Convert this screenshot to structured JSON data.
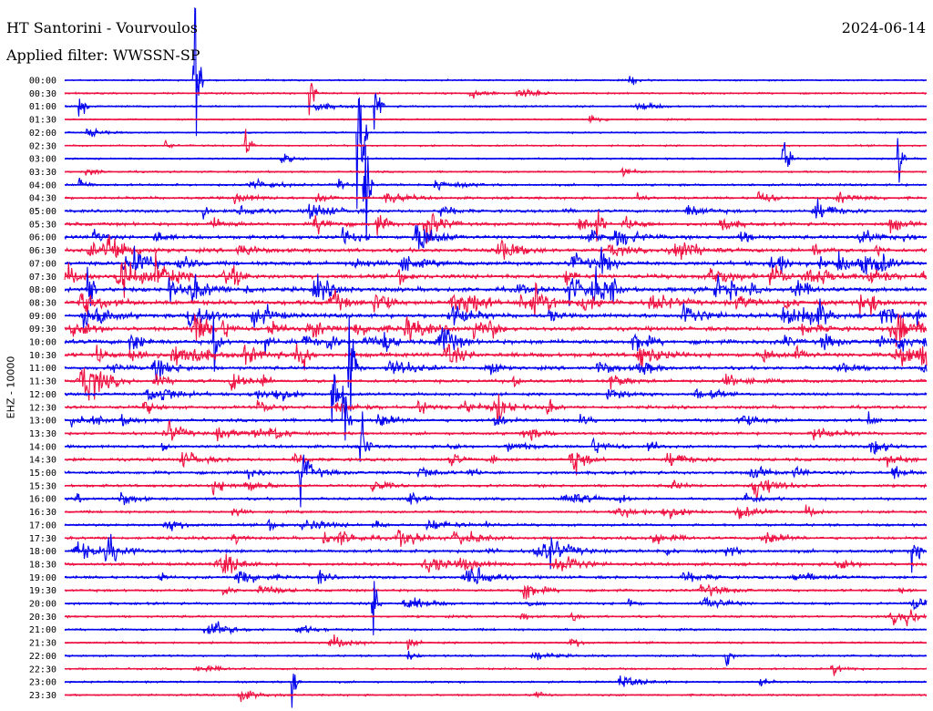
{
  "header": {
    "station": "HT Santorini - Vourvoulos",
    "date": "2024-06-14",
    "filter": "Applied filter: WWSSN-SP"
  },
  "side_label": "EHZ - 10000",
  "chart_data": {
    "type": "line",
    "title": "HT Santorini - Vourvoulos",
    "subtitle": "Applied filter: WWSSN-SP",
    "date": "2024-06-14",
    "ylabel": "EHZ - 10000",
    "row_labels": [
      "00:00",
      "00:30",
      "01:00",
      "01:30",
      "02:00",
      "02:30",
      "03:00",
      "03:30",
      "04:00",
      "04:30",
      "05:00",
      "05:30",
      "06:00",
      "06:30",
      "07:00",
      "07:30",
      "08:00",
      "08:30",
      "09:00",
      "09:30",
      "10:00",
      "10:30",
      "11:00",
      "11:30",
      "12:00",
      "12:30",
      "13:00",
      "13:30",
      "14:00",
      "14:30",
      "15:00",
      "15:30",
      "16:00",
      "16:30",
      "17:00",
      "17:30",
      "18:00",
      "18:30",
      "19:00",
      "19:30",
      "20:00",
      "20:30",
      "21:00",
      "21:30",
      "22:00",
      "22:30",
      "23:00",
      "23:30"
    ],
    "trace_colors": [
      "#0000ee",
      "#ee1040"
    ],
    "xlim_minutes": [
      0,
      30
    ],
    "row_activity": [
      0.04,
      0.1,
      0.12,
      0.05,
      0.05,
      0.08,
      0.1,
      0.12,
      0.25,
      0.35,
      0.45,
      0.55,
      0.65,
      0.7,
      0.8,
      0.85,
      0.9,
      0.95,
      0.85,
      0.8,
      0.9,
      0.85,
      0.6,
      0.55,
      0.45,
      0.5,
      0.5,
      0.45,
      0.45,
      0.5,
      0.5,
      0.4,
      0.35,
      0.3,
      0.35,
      0.45,
      0.55,
      0.5,
      0.45,
      0.35,
      0.3,
      0.25,
      0.2,
      0.18,
      0.15,
      0.15,
      0.15,
      0.15
    ],
    "events": [
      {
        "row": 0,
        "minute": 4.5,
        "amp": 5.0
      },
      {
        "row": 1,
        "minute": 8.5,
        "amp": 1.3
      },
      {
        "row": 2,
        "minute": 0.5,
        "amp": 1.0
      },
      {
        "row": 2,
        "minute": 10.8,
        "amp": 1.6
      },
      {
        "row": 4,
        "minute": 10.2,
        "amp": 5.5
      },
      {
        "row": 5,
        "minute": 6.3,
        "amp": 1.0
      },
      {
        "row": 6,
        "minute": 25.0,
        "amp": 1.1
      },
      {
        "row": 6,
        "minute": 29.0,
        "amp": 1.3
      },
      {
        "row": 8,
        "minute": 10.4,
        "amp": 4.0
      },
      {
        "row": 11,
        "minute": 18.5,
        "amp": 1.3
      },
      {
        "row": 16,
        "minute": 0.8,
        "amp": 1.6
      },
      {
        "row": 20,
        "minute": 5.2,
        "amp": 1.5
      },
      {
        "row": 22,
        "minute": 9.9,
        "amp": 3.5
      },
      {
        "row": 24,
        "minute": 9.3,
        "amp": 2.0
      },
      {
        "row": 26,
        "minute": 9.7,
        "amp": 2.6
      },
      {
        "row": 28,
        "minute": 10.3,
        "amp": 2.2
      },
      {
        "row": 30,
        "minute": 8.2,
        "amp": 1.6
      },
      {
        "row": 36,
        "minute": 29.5,
        "amp": 1.6
      },
      {
        "row": 40,
        "minute": 10.7,
        "amp": 2.0
      },
      {
        "row": 44,
        "minute": 23.0,
        "amp": 1.0
      },
      {
        "row": 46,
        "minute": 7.9,
        "amp": 1.2
      }
    ]
  }
}
